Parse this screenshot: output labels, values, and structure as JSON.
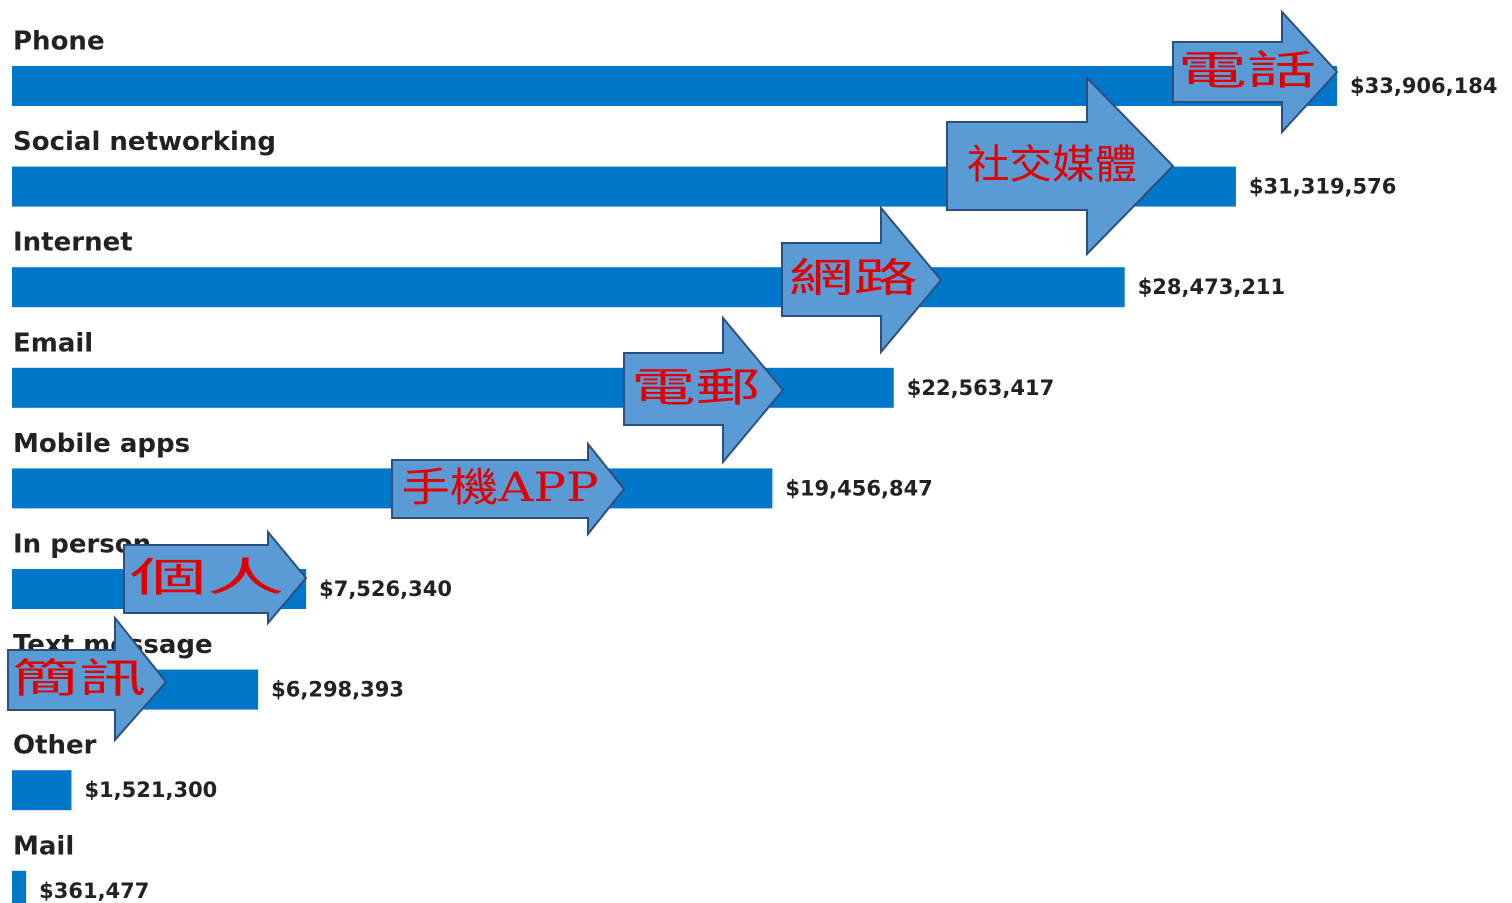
{
  "chart_data": {
    "type": "bar",
    "orientation": "horizontal",
    "categories": [
      "Phone",
      "Social networking",
      "Internet",
      "Email",
      "Mobile apps",
      "In person",
      "Text message",
      "Other",
      "Mail"
    ],
    "values": [
      33906184,
      31319576,
      28473211,
      22563417,
      19456847,
      7526340,
      6298393,
      1521300,
      361477
    ],
    "value_labels": [
      "$33,906,184",
      "$31,319,576",
      "$28,473,211",
      "$22,563,417",
      "$19,456,847",
      "$7,526,340",
      "$6,298,393",
      "$1,521,300",
      "$361,477"
    ],
    "color": "#0077c8",
    "annotations": [
      "電話",
      "社交媒體",
      "網路",
      "電郵",
      "手機APP",
      "個人",
      "簡訊"
    ]
  }
}
